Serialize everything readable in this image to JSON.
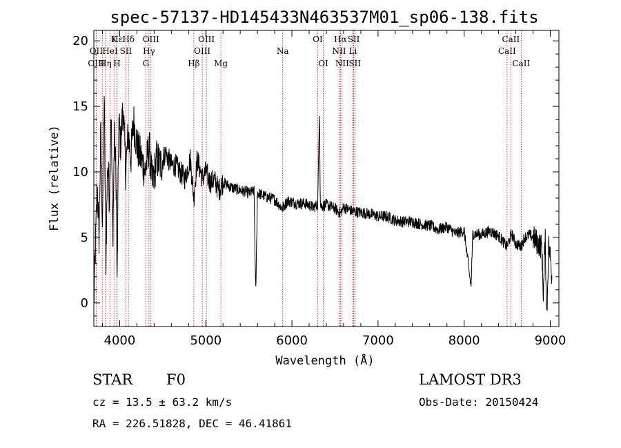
{
  "chart_data": {
    "type": "line",
    "title": "spec-57137-HD145433N463537M01_sp06-138.fits",
    "xlabel": "Wavelength (Å)",
    "ylabel": "Flux (relative)",
    "xlim": [
      3700,
      9100
    ],
    "ylim": [
      -1.8,
      20.8
    ],
    "x_ticks": [
      4000,
      5000,
      6000,
      7000,
      8000,
      9000
    ],
    "y_ticks": [
      0,
      5,
      10,
      15,
      20
    ],
    "series": [
      {
        "name": "spectrum",
        "x": [
          3700,
          3720,
          3740,
          3760,
          3780,
          3800,
          3820,
          3840,
          3860,
          3880,
          3900,
          3920,
          3940,
          3960,
          3970,
          3990,
          4010,
          4040,
          4070,
          4100,
          4130,
          4160,
          4200,
          4250,
          4300,
          4340,
          4380,
          4430,
          4480,
          4530,
          4600,
          4650,
          4700,
          4760,
          4820,
          4861,
          4900,
          4960,
          5000,
          5050,
          5100,
          5150,
          5200,
          5300,
          5400,
          5500,
          5560,
          5580,
          5600,
          5700,
          5800,
          5890,
          5950,
          6050,
          6150,
          6250,
          6300,
          6320,
          6330,
          6350,
          6400,
          6500,
          6563,
          6600,
          6700,
          6800,
          6900,
          7000,
          7100,
          7200,
          7300,
          7400,
          7500,
          7600,
          7700,
          7800,
          7900,
          8000,
          8080,
          8100,
          8200,
          8300,
          8400,
          8498,
          8550,
          8600,
          8662,
          8700,
          8760,
          8800,
          8850,
          8900,
          8920,
          8940,
          8960,
          8980,
          9000,
          9020
        ],
        "y": [
          0,
          4.5,
          9,
          5,
          13,
          6,
          16,
          3,
          11,
          8,
          15,
          5,
          13,
          9,
          1,
          14,
          12,
          15,
          10,
          13,
          11,
          14,
          12,
          11,
          10,
          12,
          9,
          11,
          10.5,
          11.5,
          10.5,
          10.5,
          10,
          9.5,
          11,
          8,
          11,
          9.5,
          10,
          9.2,
          9.4,
          8.6,
          9.2,
          8.8,
          8.6,
          8.4,
          8.5,
          0.5,
          8.4,
          8.1,
          7.9,
          7.2,
          7.8,
          7.6,
          7.6,
          7.3,
          7.5,
          15,
          7.4,
          7.4,
          7.5,
          7.2,
          6.8,
          7.3,
          7.0,
          6.9,
          6.8,
          6.6,
          6.6,
          6.3,
          6.2,
          6.2,
          6.0,
          5.9,
          5.6,
          5.8,
          5.3,
          5.5,
          1.2,
          5.3,
          5.2,
          5.5,
          5.1,
          4.3,
          5.3,
          4.5,
          4.3,
          5.0,
          5.2,
          5.0,
          4.6,
          4.3,
          0.6,
          5.0,
          -1.3,
          4.5,
          3.5,
          2.0
        ]
      }
    ],
    "line_markers": [
      {
        "name": "Hε",
        "wavelength": 3970,
        "row": 1
      },
      {
        "name": "K",
        "wavelength": 3934,
        "row": 1
      },
      {
        "name": "Hδ",
        "wavelength": 4102,
        "row": 1
      },
      {
        "name": "OIII",
        "wavelength": 4363,
        "row": 1
      },
      {
        "name": "OIII",
        "wavelength": 5007,
        "row": 1
      },
      {
        "name": "Na",
        "wavelength": 5893,
        "row": 2
      },
      {
        "name": "OI",
        "wavelength": 6300,
        "row": 1
      },
      {
        "name": "Hα",
        "wavelength": 6563,
        "row": 1
      },
      {
        "name": "SII",
        "wavelength": 6717,
        "row": 1
      },
      {
        "name": "CaII",
        "wavelength": 8542,
        "row": 1
      },
      {
        "name": "OII",
        "wavelength": 3727,
        "row": 2
      },
      {
        "name": "HeI",
        "wavelength": 3889,
        "row": 2
      },
      {
        "name": "SII",
        "wavelength": 4072,
        "row": 2
      },
      {
        "name": "Hγ",
        "wavelength": 4340,
        "row": 2
      },
      {
        "name": "OIII",
        "wavelength": 4959,
        "row": 2
      },
      {
        "name": "NII",
        "wavelength": 6548,
        "row": 2
      },
      {
        "name": "Li",
        "wavelength": 6708,
        "row": 2
      },
      {
        "name": "CaII",
        "wavelength": 8498,
        "row": 2
      },
      {
        "name": "OIII",
        "wavelength": 3727,
        "row": 3
      },
      {
        "name": "Hη",
        "wavelength": 3835,
        "row": 3
      },
      {
        "name": "H",
        "wavelength": 3968,
        "row": 3
      },
      {
        "name": "G",
        "wavelength": 4304,
        "row": 3
      },
      {
        "name": "Hβ",
        "wavelength": 4861,
        "row": 3
      },
      {
        "name": "Mg",
        "wavelength": 5175,
        "row": 3
      },
      {
        "name": "OI",
        "wavelength": 6364,
        "row": 3
      },
      {
        "name": "NII",
        "wavelength": 6583,
        "row": 3
      },
      {
        "name": "SII",
        "wavelength": 6731,
        "row": 3
      },
      {
        "name": "CaII",
        "wavelength": 8662,
        "row": 3
      }
    ],
    "extra_marker_wavelengths": [
      3798,
      3889,
      3934,
      3970
    ]
  },
  "info": {
    "object_class": "STAR",
    "subclass": "F0",
    "survey": "LAMOST DR3",
    "redshift": "cz = 13.5 ± 63.2 km/s",
    "obs_date": "Obs-Date: 20150424",
    "coords": "RA = 226.51828, DEC =  46.41861"
  },
  "colors": {
    "marker_line": "#cc0000",
    "spectrum": "#000000",
    "axes": "#000000"
  }
}
